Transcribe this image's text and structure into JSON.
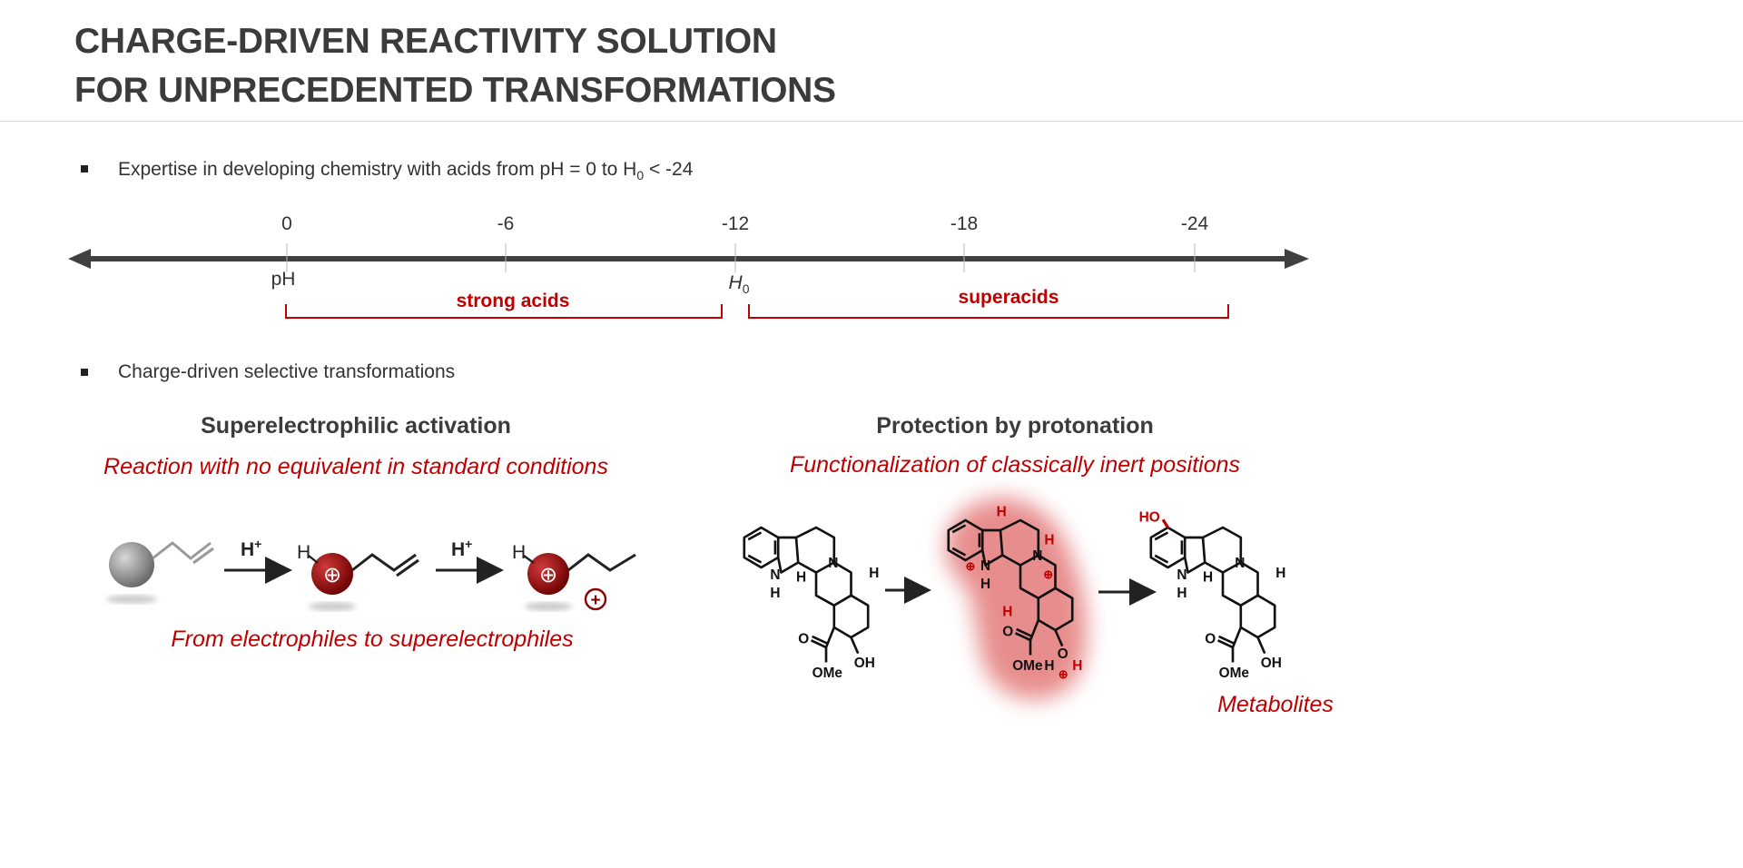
{
  "title": {
    "line1": "CHARGE-DRIVEN REACTIVITY SOLUTION",
    "line2": "FOR UNPRECEDENTED TRANSFORMATIONS"
  },
  "bullets": [
    {
      "text_before": "Expertise in developing chemistry with acids from pH = 0 to H",
      "sub": "0",
      "text_after": " < -24"
    },
    {
      "text": "Charge-driven selective transformations"
    }
  ],
  "scale": {
    "ticks": [
      "0",
      "-6",
      "-12",
      "-18",
      "-24"
    ],
    "ph_label": "pH",
    "h0_label": "H",
    "h0_sub": "0",
    "ranges": [
      {
        "label": "strong acids"
      },
      {
        "label": "superacids"
      }
    ],
    "accent_color": "#c00000"
  },
  "left_panel": {
    "heading": "Superelectrophilic activation",
    "subheading": "Reaction with no equivalent in standard conditions",
    "reagent": "H",
    "reagent_sup": "+",
    "h_label": "H",
    "plus": "⊕",
    "caption": "From electrophiles to superelectrophiles"
  },
  "right_panel": {
    "heading": "Protection by protonation",
    "subheading": "Functionalization of classically inert positions",
    "atoms": {
      "N": "N",
      "H": "H",
      "NH": "N",
      "OMe": "OMe",
      "OH": "OH",
      "HO": "HO",
      "O": "O",
      "plus": "⊕"
    },
    "caption": "Metabolites"
  }
}
